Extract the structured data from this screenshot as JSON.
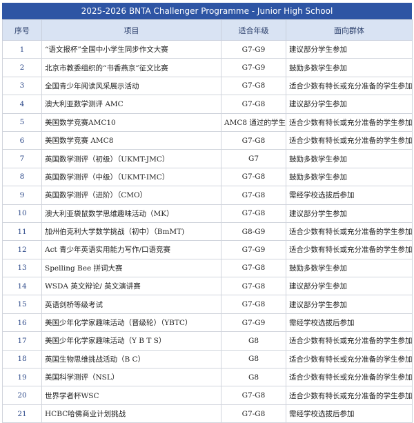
{
  "title": "2025-2026 BNTA Challenger Programme - Junior High School",
  "headers": [
    "序号",
    "项目",
    "适合年级",
    "面向群体"
  ],
  "rows": [
    [
      "1",
      "“语文报杯”全国中小学生同步作文大赛",
      "G7-G9",
      "建议部分学生参加"
    ],
    [
      "2",
      "北京市教委组织的“书香燕京”征文比赛",
      "G7-G9",
      "鼓励多数学生参加"
    ],
    [
      "3",
      "全国青少年阅读风采展示活动",
      "G7-G8",
      "适合少数有特长或充分准备的学生参加"
    ],
    [
      "4",
      "澳大利亚数学测评 AMC",
      "G7-G8",
      "建议部分学生参加"
    ],
    [
      "5",
      "美国数学竞赛AMC10",
      "AMC8 通过的学生",
      "适合少数有特长或充分准备的学生参加"
    ],
    [
      "6",
      "美国数学竞赛 AMC8",
      "G7-G8",
      "适合少数有特长或充分准备的学生参加"
    ],
    [
      "7",
      "英国数学测评（初级）（UKMT-JMC）",
      "G7",
      "鼓励多数学生参加"
    ],
    [
      "8",
      "英国数学测评（中级）（UKMT-IMC）",
      "G7-G8",
      "鼓励多数学生参加"
    ],
    [
      "9",
      "英国数学测评（进阶）（CMO）",
      "G7-G8",
      "需经学校选拔后参加"
    ],
    [
      "10",
      "澳大利亚袋鼠数学思维趣味活动（MK）",
      "G7-G8",
      "建议部分学生参加"
    ],
    [
      "11",
      "加州伯克利大学数学挑战（初中）（BmMT)",
      "G8-G9",
      "适合少数有特长或充分准备的学生参加"
    ],
    [
      "12",
      "Act 青少年英语实用能力写作/口语竞赛",
      "G7-G9",
      "适合少数有特长或充分准备的学生参加"
    ],
    [
      "13",
      "Spelling Bee 拼词大赛",
      "G7-G8",
      "鼓励多数学生参加"
    ],
    [
      "14",
      "WSDA 英文辩论/ 英文演讲赛",
      "G7-G8",
      "建议部分学生参加"
    ],
    [
      "15",
      "英语剑桥等级考试",
      "G7-G8",
      "建议部分学生参加"
    ],
    [
      "16",
      "美国少年化学家趣味活动（晋级轮）（YBTC）",
      "G7-G9",
      "需经学校选拔后参加"
    ],
    [
      "17",
      "美国少年化学家趣味活动（Y B T S）",
      "G8",
      "适合少数有特长或充分准备的学生参加"
    ],
    [
      "18",
      "英国生物思维挑战活动（B C）",
      "G8",
      "适合少数有特长或充分准备的学生参加"
    ],
    [
      "19",
      "美国科学测评（NSL）",
      "G8",
      "适合少数有特长或充分准备的学生参加"
    ],
    [
      "20",
      "世界学者杯WSC",
      "G7-G8",
      "适合少数有特长或充分准备的学生参加"
    ],
    [
      "21",
      "HCBC哈佛商业计划挑战",
      "G7-G8",
      "需经学校选拔后参加"
    ]
  ]
}
